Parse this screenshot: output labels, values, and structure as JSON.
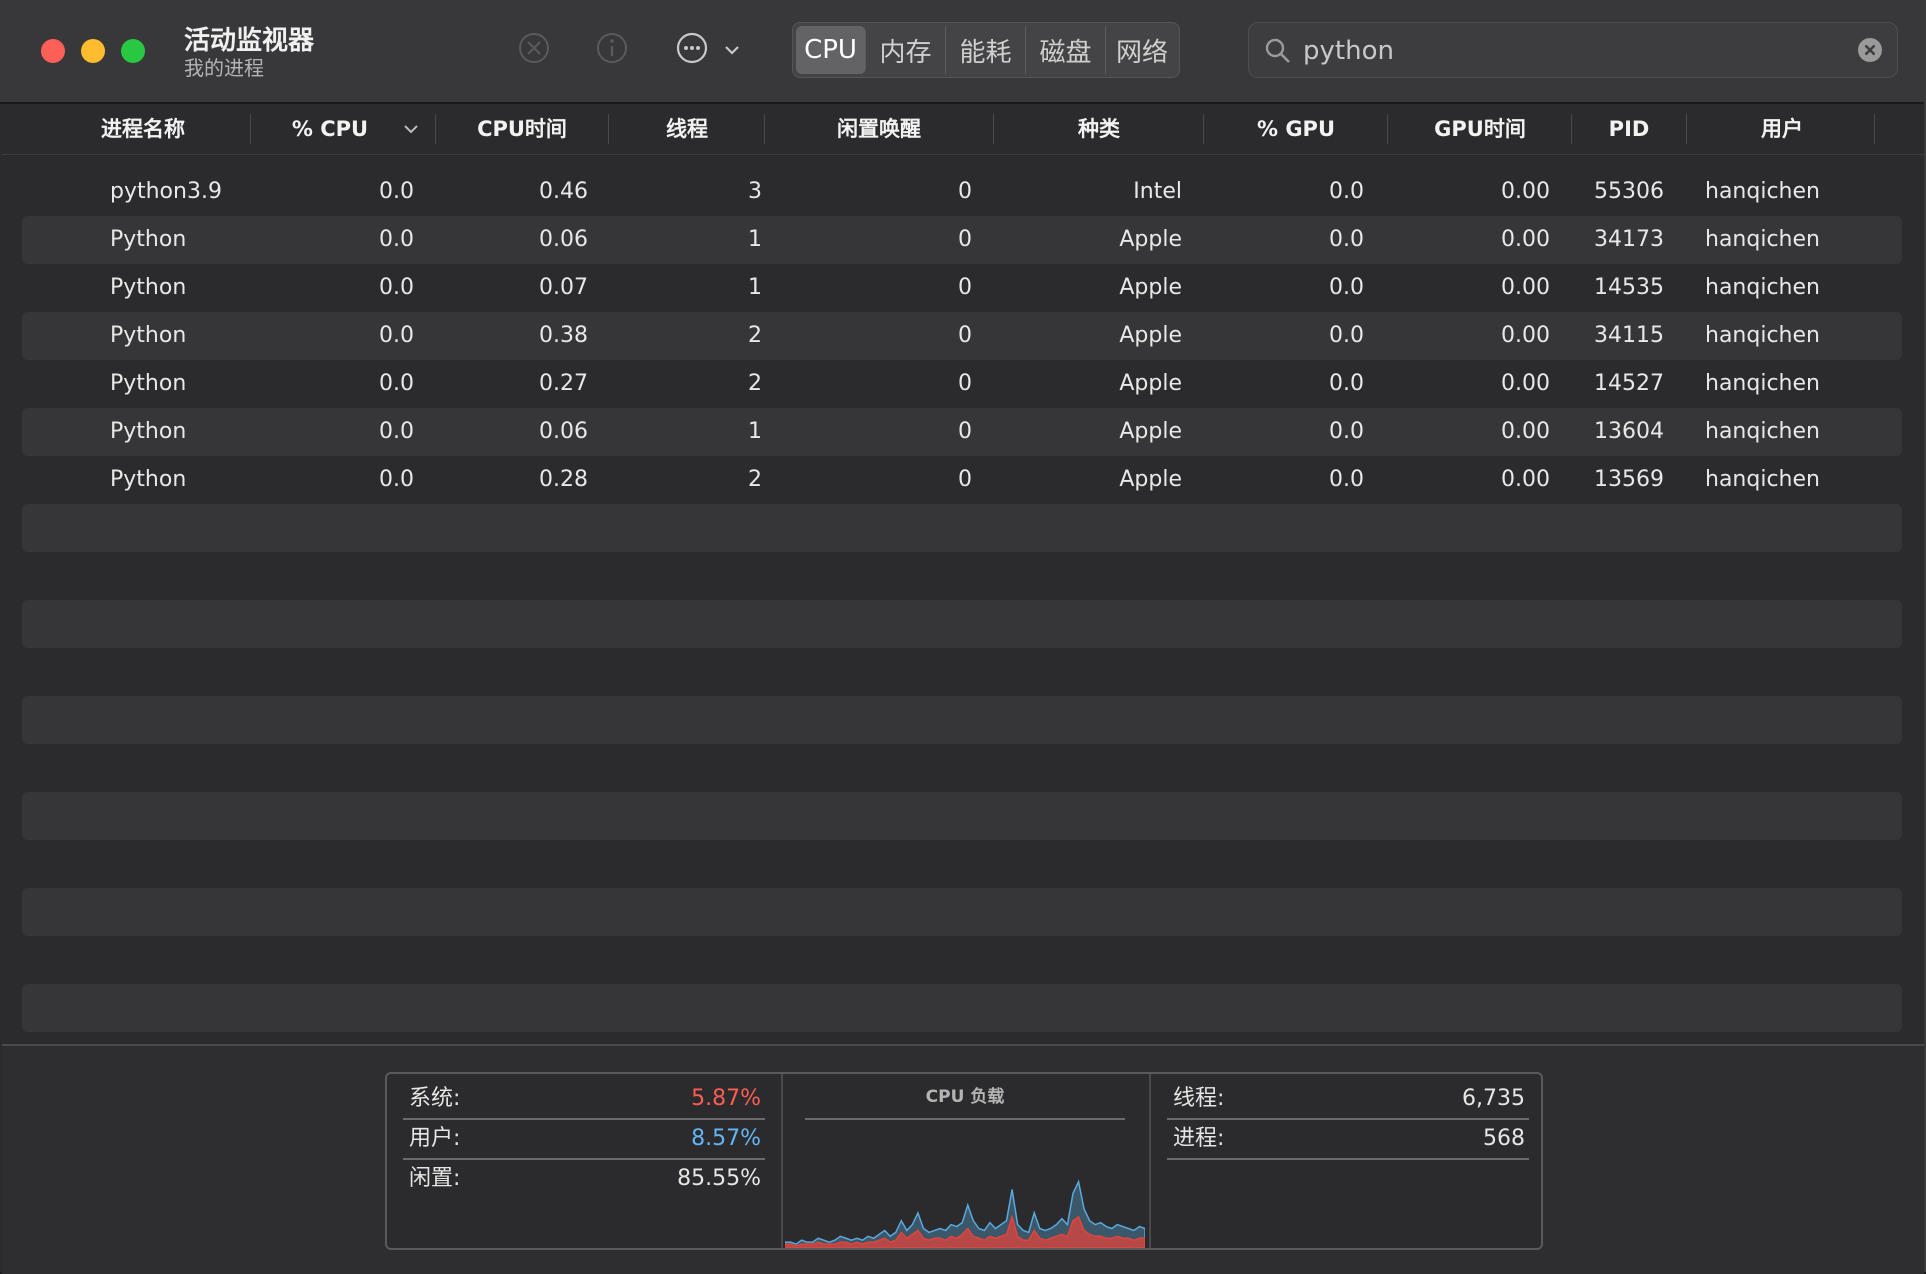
{
  "window": {
    "title": "活动监视器",
    "subtitle": "我的进程"
  },
  "toolbar": {
    "icons": [
      "stop-process-icon",
      "info-icon",
      "more-icon",
      "chevron-down-icon"
    ],
    "tabs": [
      {
        "label": "CPU",
        "active": true
      },
      {
        "label": "内存",
        "active": false
      },
      {
        "label": "能耗",
        "active": false
      },
      {
        "label": "磁盘",
        "active": false
      },
      {
        "label": "网络",
        "active": false
      }
    ],
    "search": {
      "value": "python"
    }
  },
  "columns": {
    "name": "进程名称",
    "cpu": "% CPU",
    "cpu_time": "CPU时间",
    "threads": "线程",
    "idle_wakeups": "闲置唤醒",
    "kind": "种类",
    "gpu": "% GPU",
    "gpu_time": "GPU时间",
    "pid": "PID",
    "user": "用户"
  },
  "rows": [
    {
      "name": "python3.9",
      "cpu": "0.0",
      "cpu_time": "0.46",
      "threads": "3",
      "idle": "0",
      "kind": "Intel",
      "gpu": "0.0",
      "gpu_time": "0.00",
      "pid": "55306",
      "user": "hanqichen"
    },
    {
      "name": "Python",
      "cpu": "0.0",
      "cpu_time": "0.06",
      "threads": "1",
      "idle": "0",
      "kind": "Apple",
      "gpu": "0.0",
      "gpu_time": "0.00",
      "pid": "34173",
      "user": "hanqichen"
    },
    {
      "name": "Python",
      "cpu": "0.0",
      "cpu_time": "0.07",
      "threads": "1",
      "idle": "0",
      "kind": "Apple",
      "gpu": "0.0",
      "gpu_time": "0.00",
      "pid": "14535",
      "user": "hanqichen"
    },
    {
      "name": "Python",
      "cpu": "0.0",
      "cpu_time": "0.38",
      "threads": "2",
      "idle": "0",
      "kind": "Apple",
      "gpu": "0.0",
      "gpu_time": "0.00",
      "pid": "34115",
      "user": "hanqichen"
    },
    {
      "name": "Python",
      "cpu": "0.0",
      "cpu_time": "0.27",
      "threads": "2",
      "idle": "0",
      "kind": "Apple",
      "gpu": "0.0",
      "gpu_time": "0.00",
      "pid": "14527",
      "user": "hanqichen"
    },
    {
      "name": "Python",
      "cpu": "0.0",
      "cpu_time": "0.06",
      "threads": "1",
      "idle": "0",
      "kind": "Apple",
      "gpu": "0.0",
      "gpu_time": "0.00",
      "pid": "13604",
      "user": "hanqichen"
    },
    {
      "name": "Python",
      "cpu": "0.0",
      "cpu_time": "0.28",
      "threads": "2",
      "idle": "0",
      "kind": "Apple",
      "gpu": "0.0",
      "gpu_time": "0.00",
      "pid": "13569",
      "user": "hanqichen"
    }
  ],
  "empty_rows": 11,
  "summary": {
    "system_label": "系统:",
    "system_value": "5.87%",
    "user_label": "用户:",
    "user_value": "8.57%",
    "idle_label": "闲置:",
    "idle_value": "85.55%",
    "load_title": "CPU 负载",
    "threads_label": "线程:",
    "threads_value": "6,735",
    "processes_label": "进程:",
    "processes_value": "568"
  },
  "colors": {
    "system": "#ff5d52",
    "user": "#64b5f6",
    "idle": "#e6e6e6",
    "load_system": "#e0443c",
    "load_user": "#5aa9de"
  },
  "cpu_load": {
    "user": [
      3,
      3,
      2,
      4,
      3,
      3,
      5,
      4,
      3,
      4,
      6,
      5,
      4,
      5,
      4,
      6,
      5,
      7,
      9,
      6,
      8,
      14,
      9,
      12,
      18,
      10,
      8,
      9,
      10,
      9,
      12,
      11,
      13,
      22,
      14,
      10,
      9,
      13,
      10,
      12,
      14,
      30,
      12,
      9,
      8,
      18,
      10,
      9,
      10,
      12,
      15,
      12,
      28,
      34,
      20,
      14,
      12,
      13,
      11,
      10,
      12,
      11,
      10,
      9,
      11,
      10
    ],
    "system": [
      2,
      2,
      1,
      2,
      2,
      2,
      3,
      2,
      2,
      2,
      3,
      3,
      2,
      3,
      2,
      3,
      3,
      4,
      5,
      3,
      4,
      8,
      5,
      7,
      9,
      5,
      4,
      5,
      5,
      4,
      6,
      5,
      7,
      10,
      6,
      5,
      4,
      6,
      5,
      6,
      7,
      16,
      6,
      4,
      4,
      9,
      5,
      4,
      5,
      6,
      7,
      6,
      14,
      16,
      9,
      7,
      6,
      6,
      5,
      5,
      6,
      5,
      5,
      4,
      5,
      5
    ],
    "max": 40
  }
}
